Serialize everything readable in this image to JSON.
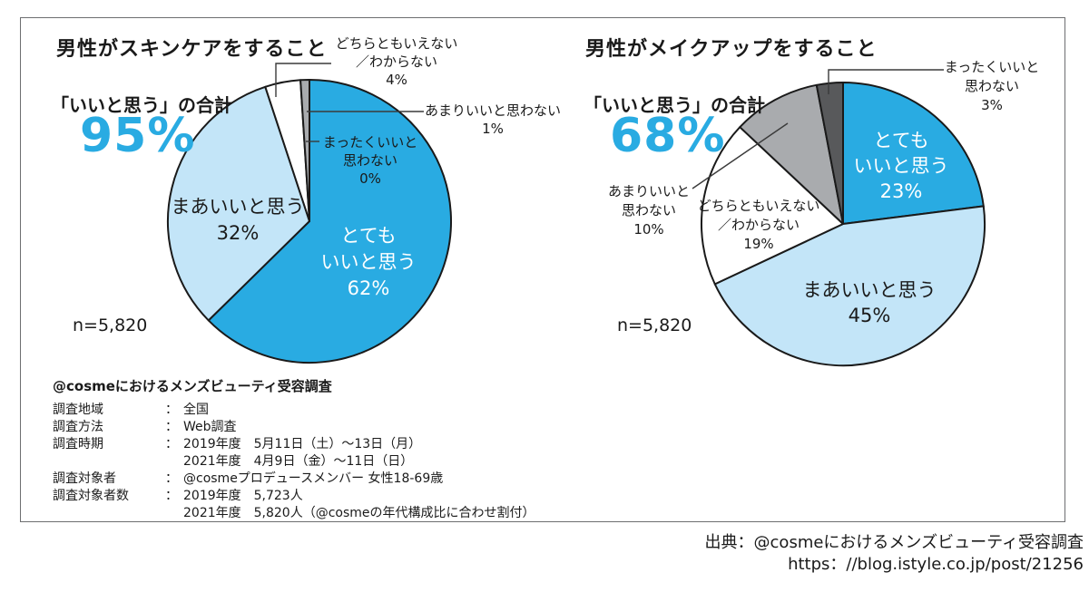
{
  "colors": {
    "accent_blue": "#29ABE2",
    "light_blue": "#C3E5F8",
    "white": "#FFFFFF",
    "gray": "#A9ABAE",
    "dark_gray": "#58595B",
    "outline": "#1A1A1A"
  },
  "chart_data": [
    {
      "type": "pie",
      "title": "男性がスキンケアをすること",
      "total_caption": "「いいと思う」の合計",
      "total_value": "95%",
      "n": "n=5,820",
      "start_angle": "top",
      "direction": "clockwise",
      "slices": [
        {
          "label": "とてもいいと思う",
          "label_lines": [
            "とても",
            "いいと思う"
          ],
          "value": 62,
          "pct": "62%",
          "color": "#29ABE2"
        },
        {
          "label": "まあいいと思う",
          "label_lines": [
            "まあいいと思う"
          ],
          "value": 32,
          "pct": "32%",
          "color": "#C3E5F8"
        },
        {
          "label": "どちらともいえない／わからない",
          "label_lines": [
            "どちらともいえない",
            "／わからない"
          ],
          "value": 4,
          "pct": "4%",
          "color": "#FFFFFF"
        },
        {
          "label": "あまりいいと思わない",
          "label_lines": [
            "あまりいいと思わない"
          ],
          "value": 1,
          "pct": "1%",
          "color": "#A9ABAE"
        },
        {
          "label": "まったくいいと思わない",
          "label_lines": [
            "まったくいいと",
            "思わない"
          ],
          "value": 0,
          "pct": "0%",
          "color": "#58595B"
        }
      ]
    },
    {
      "type": "pie",
      "title": "男性がメイクアップをすること",
      "total_caption": "「いいと思う」の合計",
      "total_value": "68%",
      "n": "n=5,820",
      "start_angle": "top",
      "direction": "clockwise",
      "slices": [
        {
          "label": "とてもいいと思う",
          "label_lines": [
            "とても",
            "いいと思う"
          ],
          "value": 23,
          "pct": "23%",
          "color": "#29ABE2"
        },
        {
          "label": "まあいいと思う",
          "label_lines": [
            "まあいいと思う"
          ],
          "value": 45,
          "pct": "45%",
          "color": "#C3E5F8"
        },
        {
          "label": "どちらともいえない／わからない",
          "label_lines": [
            "どちらともいえない",
            "／わからない"
          ],
          "value": 19,
          "pct": "19%",
          "color": "#FFFFFF"
        },
        {
          "label": "あまりいいと思わない",
          "label_lines": [
            "あまりいいと",
            "思わない"
          ],
          "value": 10,
          "pct": "10%",
          "color": "#A9ABAE"
        },
        {
          "label": "まったくいいと思わない",
          "label_lines": [
            "まったくいいと",
            "思わない"
          ],
          "value": 3,
          "pct": "3%",
          "color": "#58595B"
        }
      ]
    }
  ],
  "survey_info": {
    "title": "@cosmeにおけるメンズビューティ受容調査",
    "colon": "：",
    "rows": [
      {
        "label": "調査地域",
        "values": [
          "全国"
        ]
      },
      {
        "label": "調査方法",
        "values": [
          "Web調査"
        ]
      },
      {
        "label": "調査時期",
        "values": [
          "2019年度　5月11日（土）～13日（月）",
          "2021年度　4月9日（金）～11日（日）"
        ]
      },
      {
        "label": "調査対象者",
        "values": [
          "@cosmeプロデュースメンバー 女性18-69歳"
        ]
      },
      {
        "label": "調査対象者数",
        "values": [
          "2019年度　5,723人",
          "2021年度　5,820人（@cosmeの年代構成比に合わせ割付）"
        ]
      }
    ]
  },
  "source": {
    "line1": "出典：@cosmeにおけるメンズビューティ受容調査",
    "line2": "https：//blog.istyle.co.jp/post/21256"
  }
}
